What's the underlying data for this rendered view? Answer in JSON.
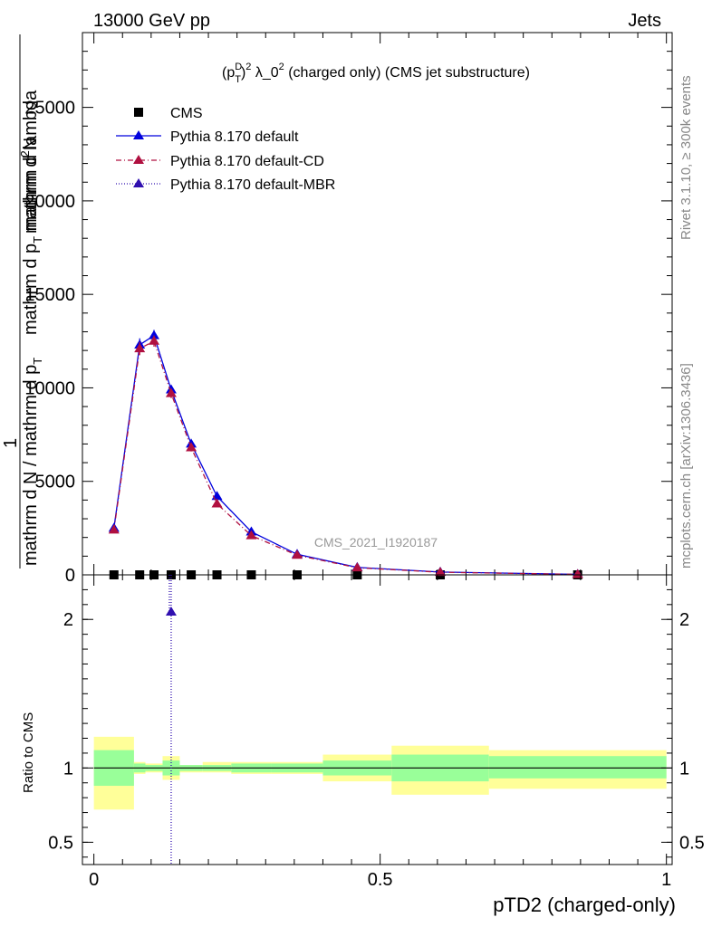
{
  "header": {
    "energy": "13000 GeV pp",
    "category": "Jets"
  },
  "side_labels": {
    "rivet": "Rivet 3.1.10, ≥ 300k events",
    "mcplots": "mcplots.cern.ch [arXiv:1306.3436]"
  },
  "watermark": "CMS_2021_I1920187",
  "title": {
    "prefix": "(p",
    "sup1": "D",
    "sub1": "T",
    "rest": ")",
    "sup2": "2",
    "tail": " λ_0",
    "sup3": "2",
    "end": " (charged only) (CMS jet substructure)"
  },
  "legend": [
    {
      "label": "CMS",
      "color": "#000000",
      "style": "marker"
    },
    {
      "label": "Pythia 8.170 default",
      "color": "#0000dd",
      "style": "solid"
    },
    {
      "label": "Pythia 8.170 default-CD",
      "color": "#b01040",
      "style": "dashdot"
    },
    {
      "label": "Pythia 8.170 default-MBR",
      "color": "#3010b0",
      "style": "dotted"
    }
  ],
  "ylabel_main": {
    "numerator": "mathrm d",
    "numerator_sup": "2",
    "numerator_tail": "N",
    "numerator_line2": "mathrm d p",
    "numerator_line2_sub": "T",
    "numerator_line2_tail": " mathrm d lambda",
    "one": "1",
    "denominator": "mathrm d N / mathrm d p",
    "denominator_sub": "T"
  },
  "ylabel_ratio": "Ratio to CMS",
  "xlabel": "pTD2 (charged-only)",
  "chart_data": {
    "type": "line",
    "main": {
      "ylim": [
        0,
        29000
      ],
      "yticks": [
        0,
        5000,
        10000,
        15000,
        20000,
        25000
      ],
      "ytick_labels": [
        "0",
        "5000",
        "10000",
        "15000",
        "20000",
        "25000"
      ],
      "xlim": [
        -0.02,
        1.01
      ],
      "xticks": [
        0,
        0.5,
        1
      ],
      "xtick_labels": [
        "0",
        "0.5",
        "1"
      ],
      "series": [
        {
          "name": "CMS",
          "x": [
            0.035,
            0.08,
            0.105,
            0.135,
            0.17,
            0.215,
            0.275,
            0.355,
            0.46,
            0.605,
            0.845
          ],
          "y": [
            0,
            0,
            0,
            0,
            0,
            0,
            0,
            0,
            0,
            0,
            0
          ]
        },
        {
          "name": "Pythia 8.170 default",
          "x": [
            0.035,
            0.08,
            0.105,
            0.135,
            0.17,
            0.215,
            0.275,
            0.355,
            0.46,
            0.605,
            0.845
          ],
          "y": [
            2500,
            12300,
            12800,
            9900,
            7000,
            4200,
            2300,
            1100,
            400,
            150,
            30
          ],
          "err": [
            150,
            350,
            300,
            250,
            200,
            150,
            100,
            60,
            30,
            15,
            5
          ]
        },
        {
          "name": "Pythia 8.170 default-CD",
          "x": [
            0.035,
            0.08,
            0.105,
            0.135,
            0.17,
            0.215,
            0.275,
            0.355,
            0.46,
            0.605,
            0.845
          ],
          "y": [
            2400,
            12100,
            12500,
            9700,
            6800,
            3800,
            2100,
            1050,
            380,
            140,
            25
          ],
          "err": [
            150,
            350,
            300,
            250,
            200,
            150,
            100,
            60,
            30,
            15,
            5
          ]
        }
      ]
    },
    "ratio": {
      "ylim": [
        0.35,
        2.3
      ],
      "yticks": [
        0.5,
        1,
        2
      ],
      "ytick_labels": [
        "0.5",
        "1",
        "2"
      ],
      "mbr_point": {
        "x": 0.135,
        "y": 2.05
      },
      "bins": [
        0,
        0.07,
        0.09,
        0.12,
        0.15,
        0.19,
        0.24,
        0.31,
        0.4,
        0.52,
        0.69,
        1.0
      ],
      "band_inner": [
        [
          0.88,
          1.12
        ],
        [
          0.97,
          1.03
        ],
        [
          0.98,
          1.02
        ],
        [
          0.95,
          1.05
        ],
        [
          0.98,
          1.02
        ],
        [
          0.98,
          1.02
        ],
        [
          0.97,
          1.03
        ],
        [
          0.97,
          1.03
        ],
        [
          0.95,
          1.05
        ],
        [
          0.91,
          1.09
        ],
        [
          0.93,
          1.08
        ],
        [
          0.93,
          1.07
        ]
      ],
      "band_outer": [
        [
          0.72,
          1.21
        ],
        [
          0.96,
          1.04
        ],
        [
          0.97,
          1.03
        ],
        [
          0.92,
          1.08
        ],
        [
          0.97,
          1.02
        ],
        [
          0.97,
          1.04
        ],
        [
          0.96,
          1.04
        ],
        [
          0.96,
          1.04
        ],
        [
          0.91,
          1.09
        ],
        [
          0.82,
          1.15
        ],
        [
          0.86,
          1.12
        ],
        [
          0.87,
          1.12
        ]
      ]
    }
  }
}
